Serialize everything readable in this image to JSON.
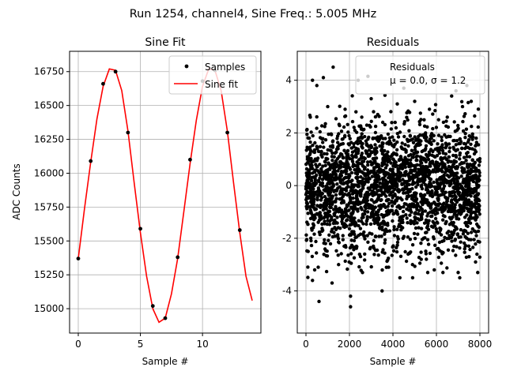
{
  "suptitle": "Run 1254, channel4, Sine Freq.: 5.005 MHz",
  "colors": {
    "samples": "#000000",
    "fit": "#ff0000",
    "grid": "#b0b0b0",
    "axes": "#000000"
  },
  "chart_data": [
    {
      "type": "line",
      "title": "Sine Fit",
      "xlabel": "Sample #",
      "ylabel": "ADC Counts",
      "xlim": [
        -0.7,
        14.7
      ],
      "ylim": [
        14820,
        16900
      ],
      "xticks": [
        0,
        5,
        10
      ],
      "yticks": [
        15000,
        15250,
        15500,
        15750,
        16000,
        16250,
        16500,
        16750
      ],
      "grid": true,
      "legend_position": "top-right",
      "series": [
        {
          "name": "Samples",
          "style": "points",
          "x": [
            0,
            1,
            2,
            3,
            4,
            5,
            6,
            7,
            8,
            9,
            10,
            11,
            12,
            13
          ],
          "y": [
            15370,
            16090,
            16660,
            16750,
            16300,
            15590,
            15020,
            14930,
            15380,
            16100,
            16680,
            16760,
            16300,
            15580
          ]
        },
        {
          "name": "Sine fit",
          "style": "line",
          "x": [
            0,
            0.5,
            1,
            1.5,
            2,
            2.5,
            3,
            3.5,
            4,
            4.5,
            5,
            5.5,
            6,
            6.5,
            7,
            7.5,
            8,
            8.5,
            9,
            9.5,
            10,
            10.5,
            11,
            11.5,
            12,
            12.5,
            13,
            13.5,
            14
          ],
          "y": [
            15370,
            15740,
            16080,
            16400,
            16640,
            16770,
            16760,
            16610,
            16310,
            15930,
            15560,
            15240,
            15000,
            14900,
            14930,
            15110,
            15370,
            15720,
            16070,
            16390,
            16640,
            16770,
            16760,
            16610,
            16310,
            15930,
            15560,
            15240,
            15060
          ]
        }
      ]
    },
    {
      "type": "scatter",
      "title": "Residuals",
      "xlabel": "Sample #",
      "ylabel": "",
      "xlim": [
        -400,
        8400
      ],
      "ylim": [
        -5.6,
        5.1
      ],
      "xticks": [
        0,
        2000,
        4000,
        6000,
        8000
      ],
      "yticks": [
        -4,
        -2,
        0,
        2,
        4
      ],
      "grid": true,
      "legend_position": "top-right",
      "legend": [
        "Residuals",
        "μ = 0.0, σ = 1.2"
      ],
      "series": [
        {
          "name": "Residuals",
          "style": "points",
          "x": [
            300,
            1250,
            800,
            2400,
            2850,
            500,
            4500,
            7400,
            6900,
            7600,
            2050,
            2050,
            300,
            600,
            1200,
            3500,
            5600,
            6300,
            7900,
            1000,
            3000,
            4200,
            5000,
            6700,
            7200,
            400,
            1500,
            2600,
            3800,
            4900,
            5900,
            7000,
            7800,
            200,
            100,
            2300,
            3300,
            4700,
            6100,
            7500,
            5300,
            1800,
            900,
            2700,
            4100,
            6500,
            7300,
            3100,
            150,
            1700,
            3400,
            4400,
            5500,
            6800,
            7100,
            700,
            2200,
            3900,
            5800,
            7700
          ],
          "y": [
            4.0,
            4.5,
            4.1,
            4.0,
            4.15,
            3.8,
            3.7,
            3.8,
            3.6,
            3.2,
            -4.2,
            -4.6,
            -3.6,
            -4.4,
            -3.7,
            -4.0,
            -3.3,
            -3.3,
            -3.3,
            3.0,
            3.3,
            3.1,
            3.2,
            3.4,
            3.0,
            -3.2,
            -3.0,
            -3.3,
            -3.1,
            -3.0,
            -3.2,
            -3.3,
            -2.9,
            2.6,
            -2.5,
            2.8,
            2.7,
            -2.6,
            2.5,
            -2.7,
            -2.8,
            2.9,
            -2.2,
            -2.6,
            2.4,
            2.6,
            -2.4,
            -2.3,
            1.8,
            -1.9,
            1.5,
            -1.4,
            2.0,
            -1.8,
            1.6,
            0.5,
            -0.8,
            1.1,
            -1.0,
            0.7
          ]
        }
      ]
    }
  ]
}
